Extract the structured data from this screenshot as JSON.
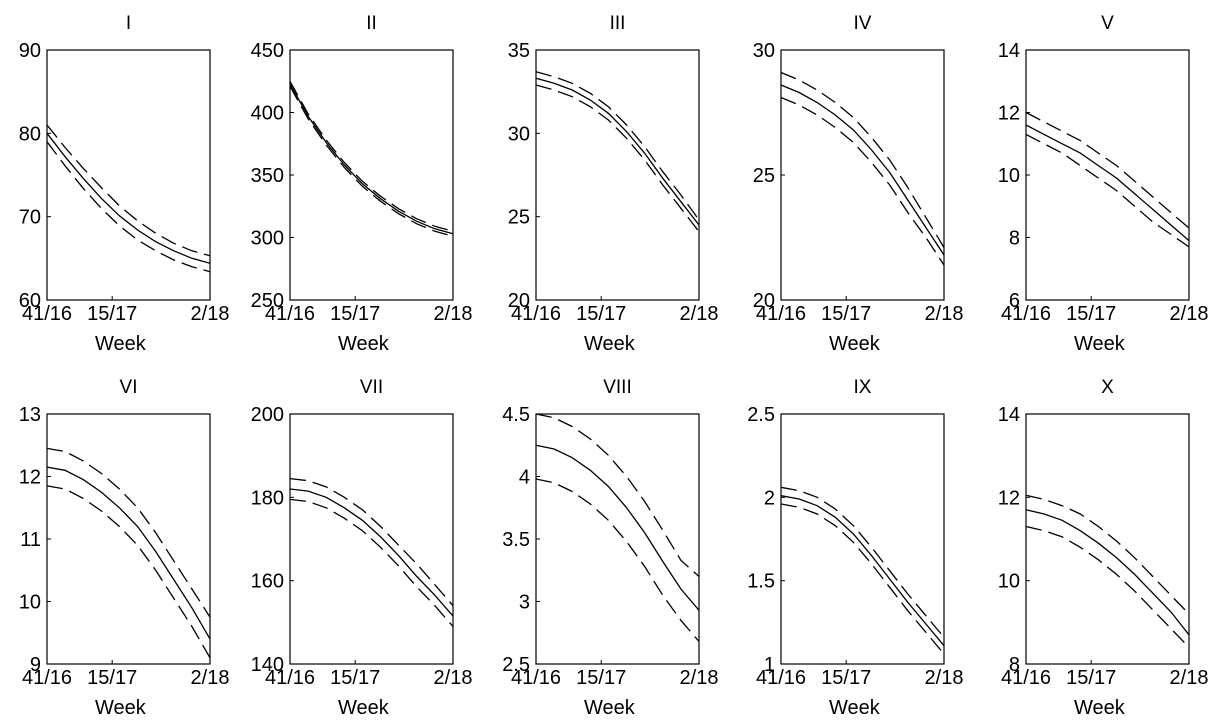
{
  "figure": {
    "x_axis_label": "Week",
    "background": "#ffffff",
    "line_color": "#000000"
  },
  "chart_data": [
    {
      "type": "line",
      "title": "I",
      "xlabel": "Week",
      "ylabel": "",
      "x_ticks": [
        "41/16",
        "15/17",
        "2/18"
      ],
      "ylim": [
        60,
        90
      ],
      "y_ticks": [
        60,
        70,
        80,
        90
      ],
      "series": [
        {
          "style": "dashed",
          "values": [
            81,
            78.3,
            75.8,
            73.5,
            71.3,
            69.5,
            68.0,
            66.8,
            65.9,
            65.3
          ]
        },
        {
          "style": "solid",
          "values": [
            80,
            77.2,
            74.6,
            72.2,
            70.1,
            68.4,
            67.0,
            65.9,
            65.0,
            64.4
          ]
        },
        {
          "style": "dashed",
          "values": [
            79,
            76.1,
            73.4,
            71.0,
            68.9,
            67.2,
            65.9,
            64.8,
            64.0,
            63.4
          ]
        }
      ]
    },
    {
      "type": "line",
      "title": "II",
      "xlabel": "Week",
      "ylabel": "",
      "x_ticks": [
        "41/16",
        "15/17",
        "2/18"
      ],
      "ylim": [
        250,
        450
      ],
      "y_ticks": [
        250,
        300,
        350,
        400,
        450
      ],
      "series": [
        {
          "style": "dashed",
          "values": [
            425,
            399,
            378,
            360,
            345,
            333,
            323,
            315,
            309,
            305
          ]
        },
        {
          "style": "solid",
          "values": [
            423,
            397,
            376,
            358,
            343,
            331,
            321,
            313,
            307,
            303
          ]
        },
        {
          "style": "dashed",
          "values": [
            421,
            395,
            374,
            356,
            341,
            329,
            319,
            311,
            305,
            301
          ]
        }
      ]
    },
    {
      "type": "line",
      "title": "III",
      "xlabel": "Week",
      "ylabel": "",
      "x_ticks": [
        "41/16",
        "15/17",
        "2/18"
      ],
      "ylim": [
        20,
        35
      ],
      "y_ticks": [
        20,
        25,
        30,
        35
      ],
      "series": [
        {
          "style": "dashed",
          "values": [
            33.7,
            33.4,
            33.0,
            32.4,
            31.6,
            30.5,
            29.2,
            27.7,
            26.3,
            24.8
          ]
        },
        {
          "style": "solid",
          "values": [
            33.3,
            33.0,
            32.6,
            32.0,
            31.2,
            30.1,
            28.8,
            27.3,
            25.9,
            24.5
          ]
        },
        {
          "style": "dashed",
          "values": [
            32.9,
            32.6,
            32.2,
            31.6,
            30.8,
            29.7,
            28.4,
            26.9,
            25.5,
            24.1
          ]
        }
      ]
    },
    {
      "type": "line",
      "title": "IV",
      "xlabel": "Week",
      "ylabel": "",
      "x_ticks": [
        "41/16",
        "15/17",
        "2/18"
      ],
      "ylim": [
        20,
        30
      ],
      "y_ticks": [
        20,
        25,
        30
      ],
      "series": [
        {
          "style": "dashed",
          "values": [
            29.1,
            28.8,
            28.4,
            27.9,
            27.3,
            26.5,
            25.6,
            24.5,
            23.3,
            22.1
          ]
        },
        {
          "style": "solid",
          "values": [
            28.6,
            28.3,
            27.9,
            27.4,
            26.8,
            26.0,
            25.1,
            24.0,
            22.9,
            21.8
          ]
        },
        {
          "style": "dashed",
          "values": [
            28.1,
            27.8,
            27.4,
            26.9,
            26.3,
            25.5,
            24.6,
            23.5,
            22.5,
            21.4
          ]
        }
      ]
    },
    {
      "type": "line",
      "title": "V",
      "xlabel": "Week",
      "ylabel": "",
      "x_ticks": [
        "41/16",
        "15/17",
        "2/18"
      ],
      "ylim": [
        6,
        14
      ],
      "y_ticks": [
        6,
        8,
        10,
        12,
        14
      ],
      "series": [
        {
          "style": "dashed",
          "values": [
            12.0,
            11.7,
            11.4,
            11.1,
            10.7,
            10.3,
            9.8,
            9.3,
            8.8,
            8.3
          ]
        },
        {
          "style": "solid",
          "values": [
            11.6,
            11.3,
            11.0,
            10.7,
            10.3,
            9.9,
            9.4,
            8.9,
            8.4,
            7.9
          ]
        },
        {
          "style": "dashed",
          "values": [
            11.3,
            11.0,
            10.7,
            10.3,
            9.9,
            9.5,
            9.0,
            8.5,
            8.1,
            7.7
          ]
        }
      ]
    },
    {
      "type": "line",
      "title": "VI",
      "xlabel": "Week",
      "ylabel": "",
      "x_ticks": [
        "41/16",
        "15/17",
        "2/18"
      ],
      "ylim": [
        9,
        13
      ],
      "y_ticks": [
        9,
        10,
        11,
        12,
        13
      ],
      "series": [
        {
          "style": "dashed",
          "values": [
            12.45,
            12.4,
            12.25,
            12.05,
            11.8,
            11.5,
            11.1,
            10.65,
            10.2,
            9.75
          ]
        },
        {
          "style": "solid",
          "values": [
            12.15,
            12.1,
            11.95,
            11.75,
            11.5,
            11.2,
            10.8,
            10.35,
            9.9,
            9.4
          ]
        },
        {
          "style": "dashed",
          "values": [
            11.85,
            11.8,
            11.65,
            11.45,
            11.2,
            10.9,
            10.5,
            10.05,
            9.6,
            9.1
          ]
        }
      ]
    },
    {
      "type": "line",
      "title": "VII",
      "xlabel": "Week",
      "ylabel": "",
      "x_ticks": [
        "41/16",
        "15/17",
        "2/18"
      ],
      "ylim": [
        140,
        200
      ],
      "y_ticks": [
        140,
        160,
        180,
        200
      ],
      "series": [
        {
          "style": "dashed",
          "values": [
            184.5,
            184,
            182.5,
            180,
            177,
            173,
            168.5,
            164,
            159,
            154
          ]
        },
        {
          "style": "solid",
          "values": [
            182,
            181.5,
            180,
            177.5,
            174.5,
            170.5,
            166,
            161,
            156.5,
            151.5
          ]
        },
        {
          "style": "dashed",
          "values": [
            179.5,
            179,
            177.5,
            175,
            172,
            168,
            163.5,
            158.5,
            154,
            149
          ]
        }
      ]
    },
    {
      "type": "line",
      "title": "VIII",
      "xlabel": "Week",
      "ylabel": "",
      "x_ticks": [
        "41/16",
        "15/17",
        "2/18"
      ],
      "ylim": [
        2.5,
        4.5
      ],
      "y_ticks": [
        2.5,
        3,
        3.5,
        4,
        4.5
      ],
      "series": [
        {
          "style": "dashed",
          "values": [
            4.5,
            4.47,
            4.4,
            4.3,
            4.17,
            4.0,
            3.8,
            3.57,
            3.33,
            3.2
          ]
        },
        {
          "style": "solid",
          "values": [
            4.25,
            4.22,
            4.15,
            4.05,
            3.92,
            3.75,
            3.55,
            3.32,
            3.1,
            2.93
          ]
        },
        {
          "style": "dashed",
          "values": [
            3.98,
            3.95,
            3.88,
            3.78,
            3.65,
            3.48,
            3.28,
            3.05,
            2.85,
            2.68
          ]
        }
      ]
    },
    {
      "type": "line",
      "title": "IX",
      "xlabel": "Week",
      "ylabel": "",
      "x_ticks": [
        "41/16",
        "15/17",
        "2/18"
      ],
      "ylim": [
        1,
        2.5
      ],
      "y_ticks": [
        1,
        1.5,
        2,
        2.5
      ],
      "series": [
        {
          "style": "dashed",
          "values": [
            2.06,
            2.04,
            2.0,
            1.93,
            1.83,
            1.7,
            1.56,
            1.42,
            1.29,
            1.16
          ]
        },
        {
          "style": "solid",
          "values": [
            2.01,
            1.99,
            1.95,
            1.88,
            1.78,
            1.65,
            1.51,
            1.37,
            1.24,
            1.11
          ]
        },
        {
          "style": "dashed",
          "values": [
            1.96,
            1.94,
            1.9,
            1.83,
            1.73,
            1.6,
            1.46,
            1.32,
            1.19,
            1.06
          ]
        }
      ]
    },
    {
      "type": "line",
      "title": "X",
      "xlabel": "Week",
      "ylabel": "",
      "x_ticks": [
        "41/16",
        "15/17",
        "2/18"
      ],
      "ylim": [
        8,
        14
      ],
      "y_ticks": [
        8,
        10,
        12,
        14
      ],
      "series": [
        {
          "style": "dashed",
          "values": [
            12.05,
            11.95,
            11.8,
            11.6,
            11.3,
            10.95,
            10.55,
            10.1,
            9.65,
            9.2
          ]
        },
        {
          "style": "solid",
          "values": [
            11.7,
            11.6,
            11.45,
            11.2,
            10.9,
            10.55,
            10.15,
            9.7,
            9.25,
            8.7
          ]
        },
        {
          "style": "dashed",
          "values": [
            11.3,
            11.2,
            11.05,
            10.8,
            10.5,
            10.15,
            9.75,
            9.3,
            8.85,
            8.4
          ]
        }
      ]
    }
  ]
}
